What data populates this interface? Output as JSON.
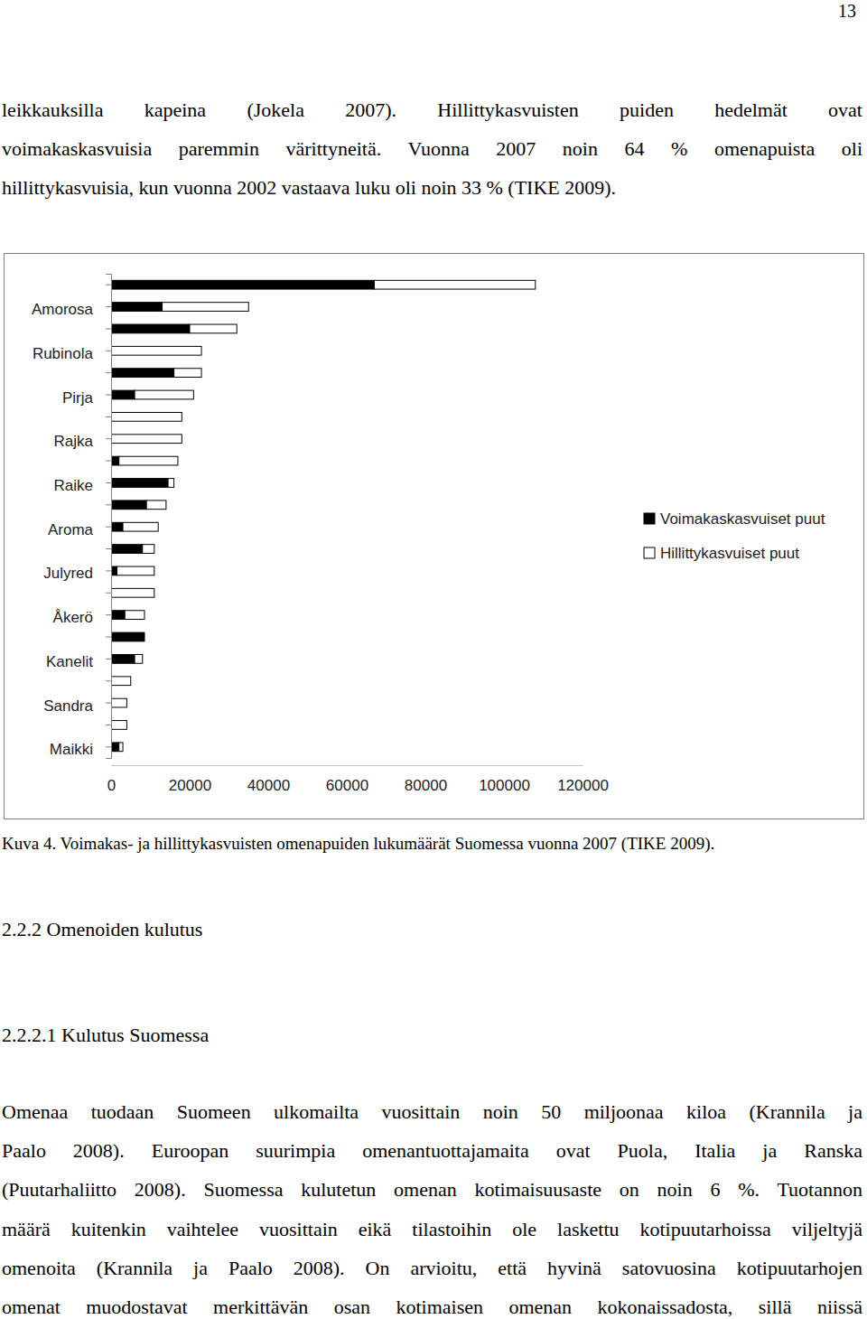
{
  "page_number": "13",
  "top_lines": [
    "leikkauksilla kapeina (Jokela 2007). Hillittykasvuisten puiden hedelmät ovat",
    "voimakaskasvuisia paremmin värittyneitä. Vuonna 2007 noin 64 % omenapuista oli",
    "hillittykasvuisia, kun vuonna 2002 vastaava luku oli noin 33 % (TIKE 2009)."
  ],
  "chart_data": {
    "type": "bar",
    "orientation": "horizontal",
    "stacked": true,
    "legend": "right",
    "categories": [
      null,
      "Amorosa",
      null,
      "Rubinola",
      null,
      "Pirja",
      null,
      "Rajka",
      null,
      "Raike",
      null,
      "Aroma",
      null,
      "Julyred",
      null,
      "Åkerö",
      null,
      "Kanelit",
      null,
      "Sandra",
      null,
      "Maikki"
    ],
    "series": [
      {
        "name": "Voimakaskasvuiset puut",
        "color": "#000000",
        "values": [
          67000,
          13000,
          20000,
          0,
          16000,
          6000,
          0,
          0,
          2000,
          14500,
          9000,
          3000,
          8000,
          1500,
          0,
          3500,
          8500,
          6000,
          0,
          0,
          0,
          2000
        ]
      },
      {
        "name": "Hillittykasvuiset puut",
        "color": "#ffffff",
        "values": [
          41000,
          22000,
          12000,
          23000,
          7000,
          15000,
          18000,
          18000,
          15000,
          1500,
          5000,
          9000,
          3000,
          9500,
          11000,
          5000,
          0,
          2000,
          5000,
          4000,
          4000,
          1000
        ]
      }
    ],
    "xlim": [
      0,
      120000
    ],
    "xticks": [
      0,
      20000,
      40000,
      60000,
      80000,
      100000,
      120000
    ]
  },
  "caption": "Kuva 4. Voimakas- ja hillittykasvuisten omenapuiden lukumäärät Suomessa vuonna 2007 (TIKE 2009).",
  "heading_1": "2.2.2 Omenoiden kulutus",
  "heading_2": "2.2.2.1 Kulutus Suomessa",
  "body_lines": [
    "Omenaa tuodaan Suomeen ulkomailta vuosittain noin 50 miljoonaa kiloa (Krannila ja",
    "Paalo 2008). Euroopan suurimpia omenantuottajamaita ovat Puola, Italia ja Ranska",
    "(Puutarhaliitto 2008). Suomessa kulutetun omenan kotimaisuusaste on noin 6 %. Tuotannon",
    "määrä kuitenkin vaihtelee vuosittain eikä tilastoihin ole laskettu kotipuutarhoissa viljeltyjä",
    "omenoita (Krannila ja Paalo 2008). On arvioitu, että hyvinä satovuosina kotipuutarhojen",
    "omenat muodostavat merkittävän osan kotimaisen omenan kokonaissadosta, sillä niissä"
  ]
}
